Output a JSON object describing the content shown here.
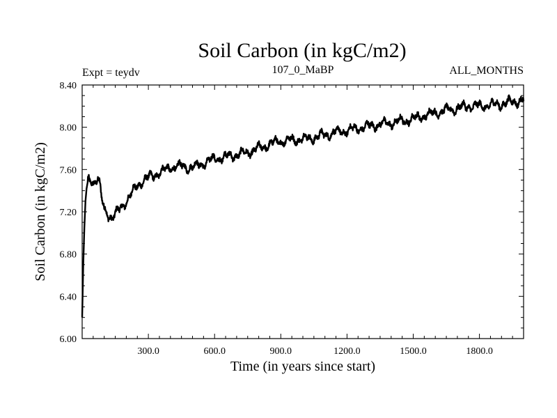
{
  "chart_data": {
    "type": "line",
    "title": "Soil Carbon (in kgC/m2)",
    "subtitle_left": "Expt = teydv",
    "subtitle_center": "107_0_MaBP",
    "subtitle_right": "ALL_MONTHS",
    "xlabel": "Time (in years since start)",
    "ylabel": "Soil Carbon (in kgC/m2)",
    "xlim": [
      0,
      2000
    ],
    "ylim": [
      6.0,
      8.4
    ],
    "xticks": [
      300,
      600,
      900,
      1200,
      1500,
      1800
    ],
    "xtick_labels": [
      "300.0",
      "600.0",
      "900.0",
      "1200.0",
      "1500.0",
      "1800.0"
    ],
    "yticks": [
      6.0,
      6.4,
      6.8,
      7.2,
      7.6,
      8.0,
      8.4
    ],
    "ytick_labels": [
      "6.00",
      "6.40",
      "6.80",
      "7.20",
      "7.60",
      "8.00",
      "8.40"
    ],
    "series": [
      {
        "name": "Soil Carbon",
        "x": [
          0,
          5,
          10,
          15,
          20,
          25,
          30,
          40,
          50,
          60,
          70,
          80,
          90,
          100,
          110,
          120,
          130,
          140,
          150,
          160,
          170,
          180,
          190,
          200,
          220,
          240,
          260,
          280,
          300,
          330,
          360,
          400,
          450,
          500,
          550,
          600,
          650,
          700,
          750,
          800,
          850,
          900,
          950,
          1000,
          1050,
          1100,
          1150,
          1200,
          1250,
          1300,
          1350,
          1400,
          1450,
          1500,
          1550,
          1600,
          1650,
          1700,
          1750,
          1800,
          1850,
          1900,
          1950,
          2000
        ],
        "values": [
          6.2,
          6.7,
          7.05,
          7.3,
          7.42,
          7.48,
          7.5,
          7.5,
          7.48,
          7.5,
          7.52,
          7.45,
          7.3,
          7.22,
          7.2,
          7.17,
          7.15,
          7.15,
          7.17,
          7.2,
          7.22,
          7.25,
          7.28,
          7.3,
          7.36,
          7.42,
          7.47,
          7.5,
          7.52,
          7.55,
          7.58,
          7.62,
          7.63,
          7.62,
          7.66,
          7.7,
          7.72,
          7.74,
          7.76,
          7.8,
          7.84,
          7.87,
          7.88,
          7.89,
          7.9,
          7.93,
          7.95,
          7.97,
          7.99,
          8.01,
          8.03,
          8.04,
          8.06,
          8.08,
          8.11,
          8.14,
          8.16,
          8.18,
          8.2,
          8.2,
          8.21,
          8.22,
          8.24,
          8.26
        ]
      }
    ]
  }
}
